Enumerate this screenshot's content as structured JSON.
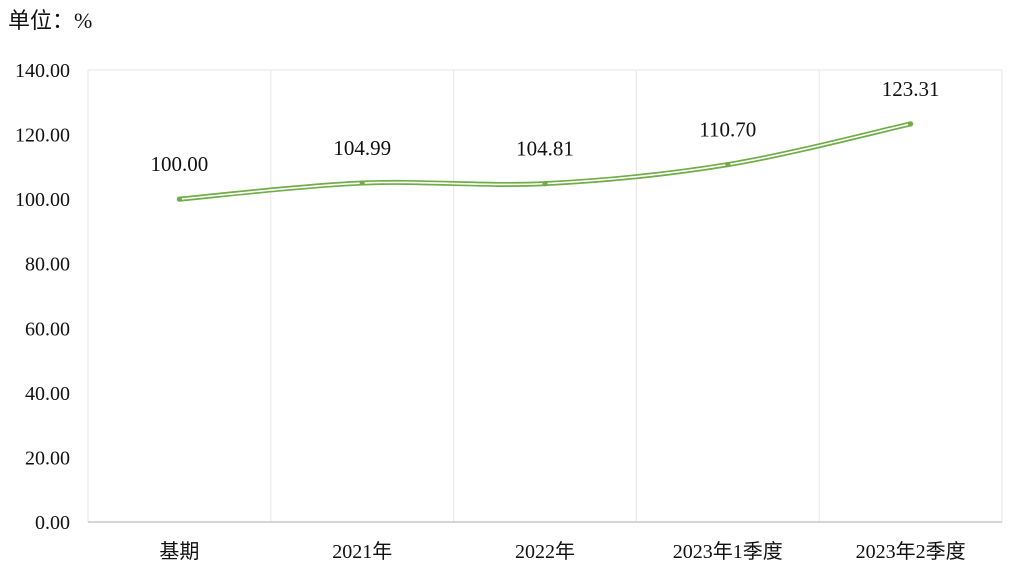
{
  "chart_data": {
    "type": "line",
    "unit_label": "单位：%",
    "categories": [
      "基期",
      "2021年",
      "2022年",
      "2023年1季度",
      "2023年2季度"
    ],
    "series": [
      {
        "values": [
          100.0,
          104.99,
          104.81,
          110.7,
          123.31
        ]
      }
    ],
    "data_labels": [
      "100.00",
      "104.99",
      "104.81",
      "110.70",
      "123.31"
    ],
    "y_tick_labels": [
      "0.00",
      "20.00",
      "40.00",
      "60.00",
      "80.00",
      "100.00",
      "120.00",
      "140.00"
    ],
    "ylim": [
      0,
      140
    ],
    "y_step": 20,
    "grid": "vertical",
    "legend": "none",
    "colors": {
      "line": "#70ad47",
      "grid": "#e6e6e6",
      "axis": "#bfbfbf"
    }
  }
}
